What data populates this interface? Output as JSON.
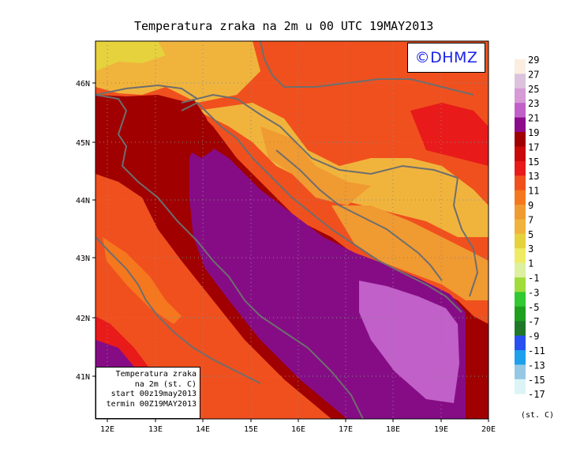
{
  "title": "Temperatura zraka na 2m u 00 UTC 19MAY2013",
  "logo": "©DHMZ",
  "info_box": {
    "line1": "Temperatura zraka",
    "line2": "na 2m (st. C)",
    "line3": "start 00z19may2013",
    "line4": "termin 00Z19MAY2013"
  },
  "lat_labels": [
    "46N",
    "45N",
    "44N",
    "43N",
    "42N",
    "41N"
  ],
  "lon_labels": [
    "12E",
    "13E",
    "14E",
    "15E",
    "16E",
    "17E",
    "18E",
    "19E",
    "20E"
  ],
  "legend": {
    "unit": "(st. C)",
    "labels": [
      "29",
      "27",
      "25",
      "23",
      "21",
      "19",
      "17",
      "15",
      "13",
      "11",
      "9",
      "7",
      "5",
      "3",
      "1",
      "-1",
      "-3",
      "-5",
      "-7",
      "-9",
      "-11",
      "-13",
      "-15",
      "-17"
    ],
    "colors": [
      "#fbeee0",
      "#dcc2dc",
      "#d69ad6",
      "#c060c8",
      "#8c0c8c",
      "#a00000",
      "#c80a0a",
      "#e81a1a",
      "#f0501e",
      "#f6781e",
      "#f09a32",
      "#f0b43c",
      "#e6d23c",
      "#f0eb64",
      "#dcf0a0",
      "#a0dc3c",
      "#32c832",
      "#1ea01e",
      "#1e7828",
      "#2850f0",
      "#1ea0ec",
      "#96c8e6",
      "#dcf4f6"
    ]
  },
  "field_colors": {
    "sea": "#860c86",
    "sea_light": "#c060c8",
    "hot": "#a00000",
    "warm": "#e81a1a",
    "mild": "#f0501e",
    "cool": "#f09a32",
    "cold": "#f0b43c",
    "coldest": "#e6d23c",
    "border": "#6e6e6e"
  }
}
